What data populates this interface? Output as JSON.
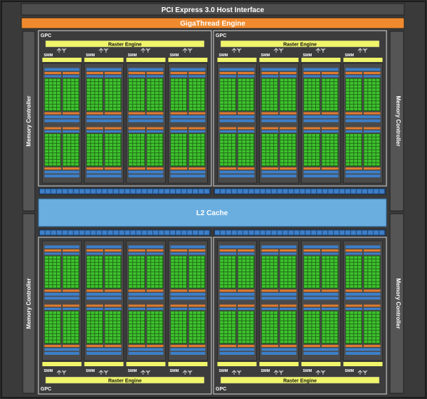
{
  "header": {
    "pcie_label": "PCI Express 3.0 Host Interface",
    "gigathread_label": "GigaThread Engine"
  },
  "memory_controller_label": "Memory Controller",
  "l2_label": "L2 Cache",
  "gpc": {
    "label": "GPC",
    "raster_label": "Raster Engine",
    "smm_label": "SMM",
    "count": 4,
    "smm_per_gpc": 4
  },
  "colors": {
    "background": "#3a3a3a",
    "chip_border": "#1c1c1c",
    "pcie": "#4a4a4a",
    "gigathread": "#f08a2e",
    "memory_controller": "#555555",
    "l2_cache": "#6aaee0",
    "raster_engine": "#f0f56a",
    "core_green": "#3ec32e",
    "core_dark": "#1d5a14",
    "blue_bar": "#3d7fc8",
    "orange_bar": "#e07a2e",
    "text_light": "#ffffff",
    "text_dark": "#111111"
  }
}
